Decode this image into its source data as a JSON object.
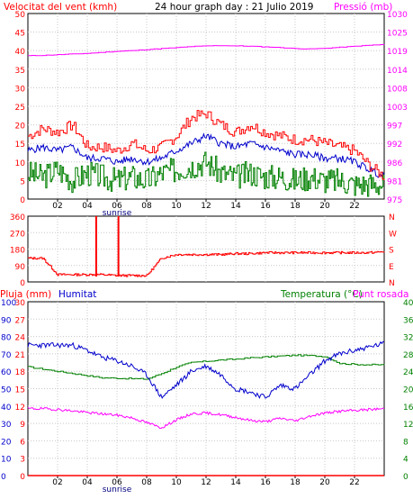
{
  "header": {
    "left": "Velocitat del vent (kmh)",
    "center": "24 hour graph day : 21 Julio 2019",
    "right": "Pressió (mb)"
  },
  "x_ticks": [
    "02",
    "04",
    "06",
    "08",
    "10",
    "12",
    "14",
    "16",
    "18",
    "20",
    "22"
  ],
  "sunrise_label": "sunrise",
  "colors": {
    "wind_speed": "#ff0000",
    "wind_avg": "#0000cc",
    "wind_green": "#008000",
    "pressure": "#ff00ff",
    "direction": "#ff0000",
    "humidity": "#0000cc",
    "temperature": "#008000",
    "dewpoint": "#ff00ff",
    "rain": "#ff0000"
  },
  "chart_data": [
    {
      "type": "line",
      "title": "24 hour graph day : 21 Julio 2019",
      "left_axis_label": "Velocitat del vent (kmh)",
      "right_axis_label": "Pressió (mb)",
      "left_ticks": [
        "50",
        "45",
        "40",
        "35",
        "30",
        "25",
        "20",
        "15",
        "10",
        "5",
        "0"
      ],
      "right_ticks": [
        "1030",
        "1025",
        "1019",
        "1014",
        "1008",
        "1003",
        "997",
        "992",
        "986",
        "981",
        "975"
      ],
      "ylim": [
        0,
        50
      ],
      "y2lim": [
        975,
        1030
      ],
      "x_hours": [
        0,
        1,
        2,
        3,
        4,
        5,
        6,
        7,
        8,
        9,
        10,
        11,
        12,
        13,
        14,
        15,
        16,
        17,
        18,
        19,
        20,
        21,
        22,
        23,
        24
      ],
      "series": [
        {
          "key": "gust",
          "axis": "left",
          "values": [
            17,
            19,
            18,
            20,
            14,
            14,
            13,
            15,
            13,
            14,
            17,
            22,
            23,
            20,
            18,
            20,
            18,
            17,
            16,
            16,
            15,
            14,
            13,
            9,
            6
          ]
        },
        {
          "key": "average",
          "axis": "left",
          "values": [
            13,
            14,
            13,
            14,
            11,
            11,
            10,
            11,
            10,
            11,
            13,
            15,
            17,
            15,
            14,
            15,
            14,
            13,
            12,
            12,
            11,
            11,
            10,
            8,
            6
          ]
        },
        {
          "key": "low",
          "axis": "left",
          "values": [
            7,
            6,
            8,
            5,
            7,
            6,
            5,
            6,
            5,
            7,
            8,
            9,
            10,
            7,
            6,
            7,
            6,
            6,
            5,
            6,
            5,
            5,
            4,
            4,
            4
          ]
        },
        {
          "key": "pressure",
          "axis": "right",
          "values": [
            1017.5,
            1017.6,
            1017.8,
            1018.0,
            1018.2,
            1018.5,
            1018.8,
            1019.0,
            1019.3,
            1019.6,
            1019.9,
            1020.2,
            1020.4,
            1020.5,
            1020.4,
            1020.3,
            1020.1,
            1019.9,
            1019.6,
            1019.5,
            1019.7,
            1020.0,
            1020.3,
            1020.6,
            1020.8
          ]
        }
      ]
    },
    {
      "type": "line",
      "left_ticks": [
        "360",
        "270",
        "180",
        "90",
        "0"
      ],
      "right_ticks": [
        "N",
        "W",
        "S",
        "E",
        "N"
      ],
      "ylim": [
        0,
        360
      ],
      "x_hours": [
        0,
        1,
        2,
        3,
        4,
        5,
        6,
        7,
        8,
        9,
        10,
        11,
        12,
        13,
        14,
        15,
        16,
        17,
        18,
        19,
        20,
        21,
        22,
        23,
        24
      ],
      "series": [
        {
          "key": "direction",
          "values": [
            130,
            130,
            40,
            40,
            40,
            40,
            35,
            35,
            35,
            130,
            150,
            150,
            150,
            150,
            155,
            155,
            160,
            160,
            160,
            160,
            160,
            160,
            160,
            160,
            165
          ]
        }
      ],
      "spikes": [
        {
          "x": 4.6,
          "y": 360
        },
        {
          "x": 6.1,
          "y": 360
        }
      ]
    },
    {
      "type": "line",
      "legend": [
        "Pluja (mm)",
        "Humitat",
        "Temperatura (°C)",
        "Punt rosada"
      ],
      "rain_ticks": [
        "100",
        "90",
        "80",
        "70",
        "60",
        "50",
        "40",
        "30",
        "20",
        "10",
        "0"
      ],
      "left_ticks": [
        "30",
        "27",
        "24",
        "21",
        "18",
        "15",
        "12",
        "9",
        "6",
        "3",
        "0"
      ],
      "right_ticks": [
        "40",
        "36",
        "32",
        "28",
        "24",
        "20",
        "16",
        "12",
        "8",
        "4",
        "0"
      ],
      "ylim": [
        0,
        30
      ],
      "y2lim": [
        0,
        40
      ],
      "x_hours": [
        0,
        1,
        2,
        3,
        4,
        5,
        6,
        7,
        8,
        9,
        10,
        11,
        12,
        13,
        14,
        15,
        16,
        17,
        18,
        19,
        20,
        21,
        22,
        23,
        24
      ],
      "series": [
        {
          "key": "humidity",
          "values": [
            75,
            75,
            75,
            75,
            72,
            68,
            66,
            63,
            58,
            45,
            52,
            60,
            63,
            58,
            50,
            48,
            45,
            52,
            50,
            58,
            66,
            70,
            72,
            74,
            76
          ]
        },
        {
          "key": "temperature",
          "values": [
            25,
            24.5,
            24,
            23.5,
            23,
            22.5,
            22.4,
            22.3,
            22.2,
            23.5,
            25,
            26,
            26.3,
            26.6,
            26.8,
            27.1,
            27.3,
            27.5,
            27.7,
            27.6,
            27.4,
            25.8,
            25.6,
            25.5,
            25.5
          ]
        },
        {
          "key": "dewpoint",
          "values": [
            15.4,
            15.4,
            15.2,
            14.9,
            14.5,
            14.2,
            13.9,
            13.3,
            12.2,
            11.0,
            12.8,
            14.2,
            14.4,
            14.0,
            13.4,
            12.7,
            12.4,
            13.2,
            12.6,
            13.7,
            14.4,
            14.8,
            15.0,
            15.2,
            15.4
          ]
        },
        {
          "key": "rain",
          "values": [
            0,
            0,
            0,
            0,
            0,
            0,
            0,
            0,
            0,
            0,
            0,
            0,
            0,
            0,
            0,
            0,
            0,
            0,
            0,
            0,
            0,
            0,
            0,
            0,
            0
          ]
        }
      ]
    }
  ]
}
